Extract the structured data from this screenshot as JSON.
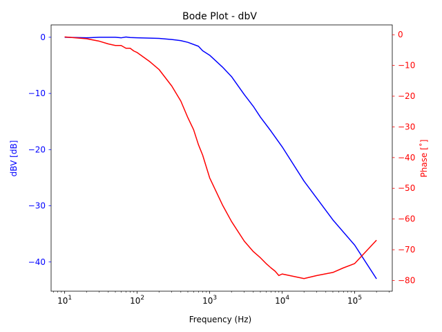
{
  "chart_data": {
    "type": "line",
    "title": "Bode Plot - dbV",
    "xlabel": "Frequency (Hz)",
    "ylabel_left": "dBV [dB]",
    "ylabel_right": "Phase [˚]",
    "x_scale": "log",
    "xlim": [
      6.5,
      330000
    ],
    "ylim_left": [
      -45.2,
      2.2
    ],
    "ylim_right": [
      -83.5,
      3.2
    ],
    "grid": false,
    "colors": {
      "magnitude": "#0000ff",
      "phase": "#ff0000",
      "left_axis_text": "#0000ff",
      "right_axis_text": "#ff0000"
    },
    "x_ticks": [
      {
        "value": 10,
        "base": "10",
        "exp": "1"
      },
      {
        "value": 100,
        "base": "10",
        "exp": "2"
      },
      {
        "value": 1000,
        "base": "10",
        "exp": "3"
      },
      {
        "value": 10000,
        "base": "10",
        "exp": "4"
      },
      {
        "value": 100000,
        "base": "10",
        "exp": "5"
      }
    ],
    "y_left_ticks": [
      {
        "value": 0,
        "label": "0"
      },
      {
        "value": -10,
        "label": "−10"
      },
      {
        "value": -20,
        "label": "−20"
      },
      {
        "value": -30,
        "label": "−30"
      },
      {
        "value": -40,
        "label": "−40"
      }
    ],
    "y_right_ticks": [
      {
        "value": 0,
        "label": "0"
      },
      {
        "value": -10,
        "label": "−10"
      },
      {
        "value": -20,
        "label": "−20"
      },
      {
        "value": -30,
        "label": "−30"
      },
      {
        "value": -40,
        "label": "−40"
      },
      {
        "value": -50,
        "label": "−50"
      },
      {
        "value": -60,
        "label": "−60"
      },
      {
        "value": -70,
        "label": "−70"
      },
      {
        "value": -80,
        "label": "−80"
      }
    ],
    "series": [
      {
        "axis": "left",
        "x": [
          10,
          20,
          30,
          40,
          50,
          60,
          70,
          80,
          100,
          150,
          200,
          300,
          400,
          500,
          700,
          800,
          1000,
          1500,
          2000,
          3000,
          4000,
          5000,
          7000,
          10000,
          20000,
          50000,
          100000,
          200000
        ],
        "values": [
          0,
          -0.1,
          0,
          0,
          0,
          -0.1,
          0.05,
          -0.05,
          -0.1,
          -0.15,
          -0.2,
          -0.4,
          -0.6,
          -0.9,
          -1.6,
          -2.4,
          -3.2,
          -5.3,
          -7.0,
          -10.2,
          -12.3,
          -14.2,
          -16.7,
          -19.5,
          -25.6,
          -32.5,
          -37.0,
          -43.0
        ]
      },
      {
        "axis": "right",
        "x": [
          10,
          20,
          30,
          40,
          50,
          60,
          70,
          80,
          90,
          100,
          150,
          200,
          300,
          400,
          500,
          600,
          700,
          800,
          900,
          1000,
          1500,
          2000,
          3000,
          4000,
          5000,
          6000,
          7000,
          8000,
          9000,
          10000,
          20000,
          30000,
          50000,
          70000,
          100000,
          200000
        ],
        "values": [
          -0.7,
          -1.3,
          -2.1,
          -3.0,
          -3.5,
          -3.5,
          -4.4,
          -4.4,
          -5.3,
          -5.8,
          -8.8,
          -11.3,
          -16.7,
          -21.6,
          -27.0,
          -30.9,
          -35.8,
          -39.2,
          -43.1,
          -46.6,
          -55.4,
          -60.8,
          -67.2,
          -70.6,
          -72.6,
          -74.5,
          -75.9,
          -77.0,
          -78.4,
          -77.9,
          -79.4,
          -78.4,
          -77.4,
          -75.9,
          -74.5,
          -66.9
        ]
      }
    ]
  }
}
